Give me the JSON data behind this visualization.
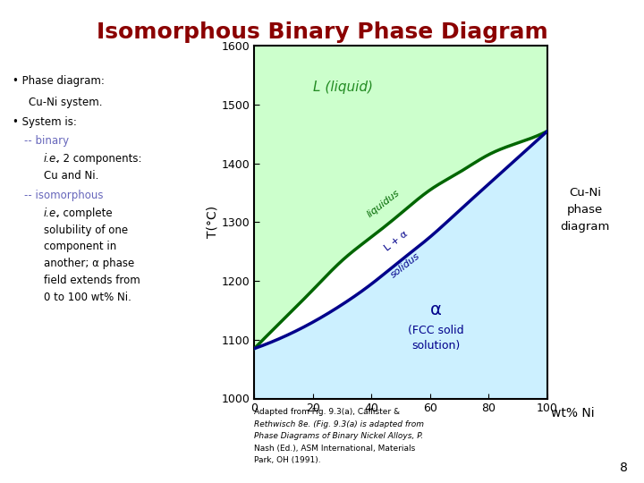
{
  "title": "Isomorphous Binary Phase Diagram",
  "title_color": "#8B0000",
  "title_fontsize": 18,
  "bg_color": "#FFFFFF",
  "liquid_fill_color": "#CCFFCC",
  "solid_fill_color": "#CCF0FF",
  "liquidus_color": "#006600",
  "solidus_color": "#00008B",
  "liquid_label": "L (liquid)",
  "liquid_label_color": "#228B22",
  "solid_label_color": "#00008B",
  "two_phase_color": "#00008B",
  "right_label": "Cu-Ni\nphase\ndiagram",
  "xlabel": "wt% Ni",
  "ylabel": "T(°C)",
  "xlim": [
    0,
    100
  ],
  "ylim": [
    1000,
    1600
  ],
  "xticks": [
    0,
    20,
    40,
    60,
    80,
    100
  ],
  "yticks": [
    1000,
    1100,
    1200,
    1300,
    1400,
    1500,
    1600
  ],
  "footnote_line1": "Adapted from Fig. 9.3(a), Callister &",
  "footnote_line2": "Rethwisch 8e. (Fig. 9.3(a) is adapted from",
  "footnote_line3": "Phase Diagrams of Binary Nickel Alloys, P.",
  "footnote_line4": "Nash (Ed.), ASM International, Materials",
  "footnote_line5": "Park, OH (1991).",
  "page_number": "8",
  "bullet_color": "#6666BB",
  "text_color": "#000000"
}
